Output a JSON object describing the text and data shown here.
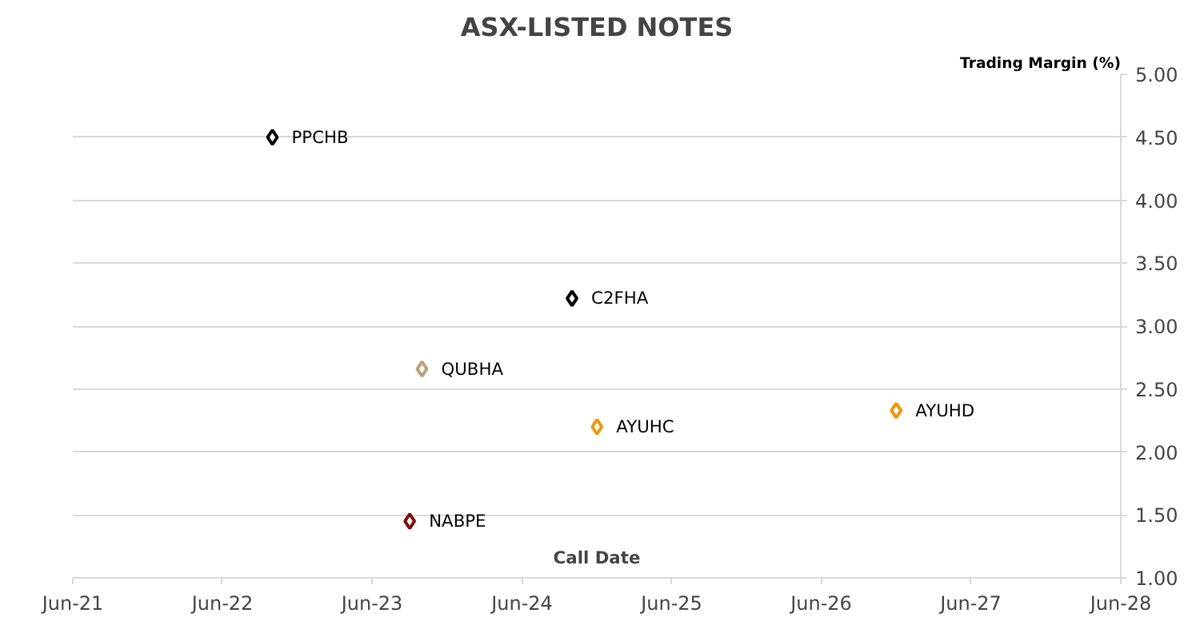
{
  "chart_data": {
    "type": "scatter",
    "title": "ASX-LISTED NOTES",
    "xlabel": "Call Date",
    "ylabel": "Trading Margin (%)",
    "series": [
      {
        "name": "PPCHB",
        "color": "#000000",
        "x": [
          "2022-10"
        ],
        "values": [
          4.5
        ]
      },
      {
        "name": "C2FHA",
        "color": "#000000",
        "x": [
          "2024-10"
        ],
        "values": [
          3.22
        ]
      },
      {
        "name": "QUBHA",
        "color": "#b8a27a",
        "x": [
          "2023-10"
        ],
        "values": [
          2.66
        ]
      },
      {
        "name": "AYUHC",
        "color": "#f0960a",
        "x": [
          "2024-12"
        ],
        "values": [
          2.2
        ]
      },
      {
        "name": "AYUHD",
        "color": "#f0960a",
        "x": [
          "2026-12"
        ],
        "values": [
          2.33
        ]
      },
      {
        "name": "NABPE",
        "color": "#7a1010",
        "x": [
          "2023-09"
        ],
        "values": [
          1.45
        ]
      }
    ],
    "xlim": [
      "2021-06",
      "2028-06"
    ],
    "xticks": [
      {
        "value": "2021-06",
        "label": "Jun-21"
      },
      {
        "value": "2022-06",
        "label": "Jun-22"
      },
      {
        "value": "2023-06",
        "label": "Jun-23"
      },
      {
        "value": "2024-06",
        "label": "Jun-24"
      },
      {
        "value": "2025-06",
        "label": "Jun-25"
      },
      {
        "value": "2026-06",
        "label": "Jun-26"
      },
      {
        "value": "2027-06",
        "label": "Jun-27"
      },
      {
        "value": "2028-06",
        "label": "Jun-28"
      }
    ],
    "ylim": [
      1,
      5
    ],
    "yticks": [
      {
        "value": 1,
        "label": "1.00"
      },
      {
        "value": 1.5,
        "label": "1.50"
      },
      {
        "value": 2,
        "label": "2.00"
      },
      {
        "value": 2.5,
        "label": "2.50"
      },
      {
        "value": 3,
        "label": "3.00"
      },
      {
        "value": 3.5,
        "label": "3.50"
      },
      {
        "value": 4,
        "label": "4.00"
      },
      {
        "value": 4.5,
        "label": "4.50"
      },
      {
        "value": 5,
        "label": "5.00"
      }
    ],
    "grid": "y",
    "legend": false,
    "marker": "diamond"
  }
}
